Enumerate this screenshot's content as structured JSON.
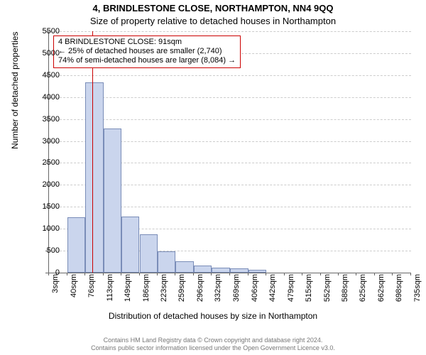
{
  "title_line1": "4, BRINDLESTONE CLOSE, NORTHAMPTON, NN4 9QQ",
  "title_line2": "Size of property relative to detached houses in Northampton",
  "title_fontsize": 13,
  "ylabel": "Number of detached properties",
  "xlabel": "Distribution of detached houses by size in Northampton",
  "axis_label_fontsize": 12,
  "tick_fontsize": 11,
  "footer_line1": "Contains HM Land Registry data © Crown copyright and database right 2024.",
  "footer_line2": "Contains public sector information licensed under the Open Government Licence v3.0.",
  "footer_fontsize": 9,
  "footer_color": "#777777",
  "chart": {
    "type": "bar",
    "background_color": "#ffffff",
    "grid_color": "#cccccc",
    "axis_color": "#666666",
    "ylim": [
      0,
      5500
    ],
    "ytick_step": 500,
    "yticks": [
      0,
      500,
      1000,
      1500,
      2000,
      2500,
      3000,
      3500,
      4000,
      4500,
      5000,
      5500
    ],
    "x_tick_labels": [
      "3sqm",
      "40sqm",
      "76sqm",
      "113sqm",
      "149sqm",
      "186sqm",
      "223sqm",
      "259sqm",
      "296sqm",
      "332sqm",
      "369sqm",
      "406sqm",
      "442sqm",
      "479sqm",
      "515sqm",
      "552sqm",
      "588sqm",
      "625sqm",
      "662sqm",
      "698sqm",
      "735sqm"
    ],
    "x_bin_edges": [
      3,
      40,
      76,
      113,
      149,
      186,
      223,
      259,
      296,
      332,
      369,
      406,
      442,
      479,
      515,
      552,
      588,
      625,
      662,
      698,
      735
    ],
    "x_range": [
      3,
      735
    ],
    "values": [
      0,
      1260,
      4330,
      3280,
      1280,
      870,
      490,
      260,
      160,
      120,
      90,
      70,
      0,
      0,
      0,
      0,
      0,
      0,
      0,
      0
    ],
    "bar_fill": "#cad5ed",
    "bar_border": "#7a8db8",
    "bar_border_width": 1,
    "marker_line_x": 91,
    "marker_line_color": "#cc0000",
    "marker_line_width": 1
  },
  "annotation": {
    "border_color": "#cc0000",
    "bg_color": "#ffffff",
    "fontsize": 11,
    "line1": "4 BRINDLESTONE CLOSE: 91sqm",
    "line2": "← 25% of detached houses are smaller (2,740)",
    "line3": "74% of semi-detached houses are larger (8,084) →"
  }
}
